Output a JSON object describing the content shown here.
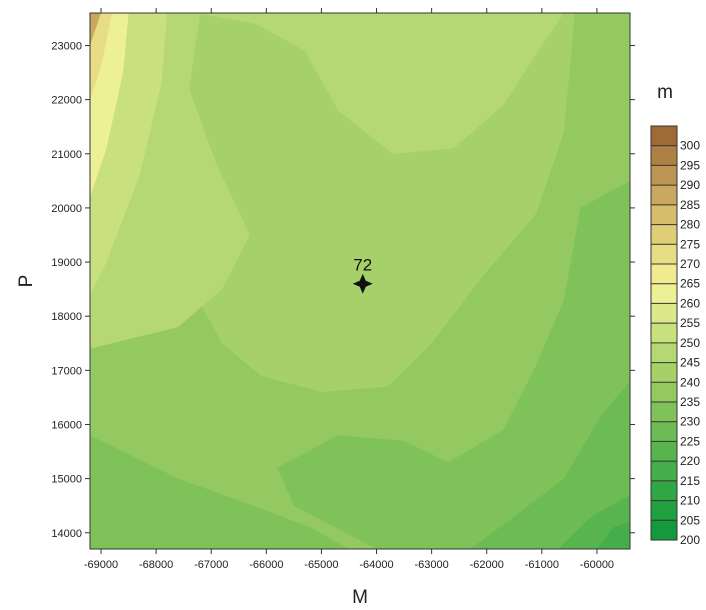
{
  "chart_data": {
    "type": "heatmap",
    "xlabel": "M",
    "ylabel": "P",
    "xlim": [
      -69200,
      -59400
    ],
    "ylim": [
      13700,
      23600
    ],
    "x_ticks": [
      -69000,
      -68000,
      -67000,
      -66000,
      -65000,
      -64000,
      -63000,
      -62000,
      -61000,
      -60000
    ],
    "x_tick_labels": [
      "-69000",
      "-68000",
      "-67000",
      "-66000",
      "-65000",
      "-64000",
      "-63000",
      "-62000",
      "-61000",
      "-60000"
    ],
    "y_ticks": [
      14000,
      15000,
      16000,
      17000,
      18000,
      19000,
      20000,
      21000,
      22000,
      23000
    ],
    "y_tick_labels": [
      "14000",
      "15000",
      "16000",
      "17000",
      "18000",
      "19000",
      "20000",
      "21000",
      "22000",
      "23000"
    ],
    "colorbar": {
      "unit": "m",
      "levels": [
        200,
        205,
        210,
        215,
        220,
        225,
        230,
        235,
        240,
        245,
        250,
        255,
        260,
        265,
        270,
        275,
        280,
        285,
        290,
        295,
        300
      ],
      "labels": [
        "300",
        "295",
        "290",
        "285",
        "280",
        "275",
        "270",
        "265",
        "260",
        "255",
        "250",
        "245",
        "240",
        "235",
        "230",
        "225",
        "220",
        "215",
        "210",
        "205",
        "200"
      ],
      "colors": [
        "#149a3c",
        "#20a03f",
        "#30a744",
        "#45ad49",
        "#58b44e",
        "#6cbb54",
        "#80c25a",
        "#94c962",
        "#a5d06a",
        "#b6d874",
        "#c9e07e",
        "#dce88a",
        "#eef095",
        "#f2ea90",
        "#e8dc84",
        "#dfcd77",
        "#d5bd6b",
        "#c9a95e",
        "#bc9652",
        "#ad8144",
        "#9e6b37"
      ]
    },
    "field": {
      "background_value": 237,
      "regions": [
        {
          "value": 243,
          "points": [
            [
              -69200,
              18400
            ],
            [
              -67400,
              18600
            ],
            [
              -66800,
              17500
            ],
            [
              -66100,
              16900
            ],
            [
              -65000,
              16600
            ],
            [
              -63800,
              16700
            ],
            [
              -63000,
              17500
            ],
            [
              -62100,
              18700
            ],
            [
              -61100,
              19900
            ],
            [
              -60600,
              21400
            ],
            [
              -60400,
              23600
            ],
            [
              -69200,
              23600
            ]
          ]
        },
        {
          "value": 248,
          "points": [
            [
              -67300,
              23600
            ],
            [
              -66200,
              23400
            ],
            [
              -65300,
              22900
            ],
            [
              -64700,
              21800
            ],
            [
              -63700,
              21000
            ],
            [
              -62600,
              21100
            ],
            [
              -61700,
              21900
            ],
            [
              -61000,
              23000
            ],
            [
              -60600,
              23600
            ]
          ]
        },
        {
          "value": 248,
          "points": [
            [
              -69200,
              23600
            ],
            [
              -67200,
              23600
            ],
            [
              -67400,
              22200
            ],
            [
              -66900,
              20800
            ],
            [
              -66300,
              19500
            ],
            [
              -66800,
              18500
            ],
            [
              -67600,
              17800
            ],
            [
              -69200,
              17400
            ]
          ]
        },
        {
          "value": 253,
          "points": [
            [
              -69200,
              23600
            ],
            [
              -67800,
              23600
            ],
            [
              -67900,
              22300
            ],
            [
              -68300,
              20600
            ],
            [
              -68900,
              19000
            ],
            [
              -69200,
              18400
            ]
          ]
        },
        {
          "value": 260,
          "points": [
            [
              -69200,
              23600
            ],
            [
              -68500,
              23600
            ],
            [
              -68600,
              22500
            ],
            [
              -68900,
              21100
            ],
            [
              -69200,
              20200
            ]
          ]
        },
        {
          "value": 272,
          "points": [
            [
              -69200,
              23600
            ],
            [
              -68800,
              23600
            ],
            [
              -69000,
              22600
            ],
            [
              -69200,
              22000
            ]
          ]
        },
        {
          "value": 285,
          "points": [
            [
              -69200,
              23600
            ],
            [
              -69000,
              23600
            ],
            [
              -69200,
              23000
            ]
          ]
        },
        {
          "value": 232,
          "points": [
            [
              -69200,
              13700
            ],
            [
              -64500,
              13700
            ],
            [
              -65200,
              14100
            ],
            [
              -66500,
              14600
            ],
            [
              -67600,
              15000
            ],
            [
              -68600,
              15500
            ],
            [
              -69200,
              15800
            ]
          ]
        },
        {
          "value": 232,
          "points": [
            [
              -65800,
              15200
            ],
            [
              -64700,
              15800
            ],
            [
              -63500,
              15700
            ],
            [
              -62700,
              15300
            ],
            [
              -61700,
              15900
            ],
            [
              -61100,
              17100
            ],
            [
              -60600,
              18300
            ],
            [
              -60300,
              20000
            ],
            [
              -59400,
              20500
            ],
            [
              -59400,
              13700
            ],
            [
              -64000,
              13700
            ],
            [
              -65500,
              14500
            ]
          ]
        },
        {
          "value": 227,
          "points": [
            [
              -62300,
              13700
            ],
            [
              -61500,
              14300
            ],
            [
              -60600,
              15000
            ],
            [
              -59900,
              16200
            ],
            [
              -59400,
              16800
            ],
            [
              -59400,
              13700
            ]
          ]
        },
        {
          "value": 222,
          "points": [
            [
              -60700,
              13700
            ],
            [
              -60100,
              14300
            ],
            [
              -59400,
              14700
            ],
            [
              -59400,
              13700
            ]
          ]
        },
        {
          "value": 217,
          "points": [
            [
              -60000,
              13700
            ],
            [
              -59700,
              14100
            ],
            [
              -59400,
              14200
            ],
            [
              -59400,
              13700
            ]
          ]
        }
      ]
    },
    "marker": {
      "label": "72",
      "x": -64250,
      "y": 18600
    }
  }
}
